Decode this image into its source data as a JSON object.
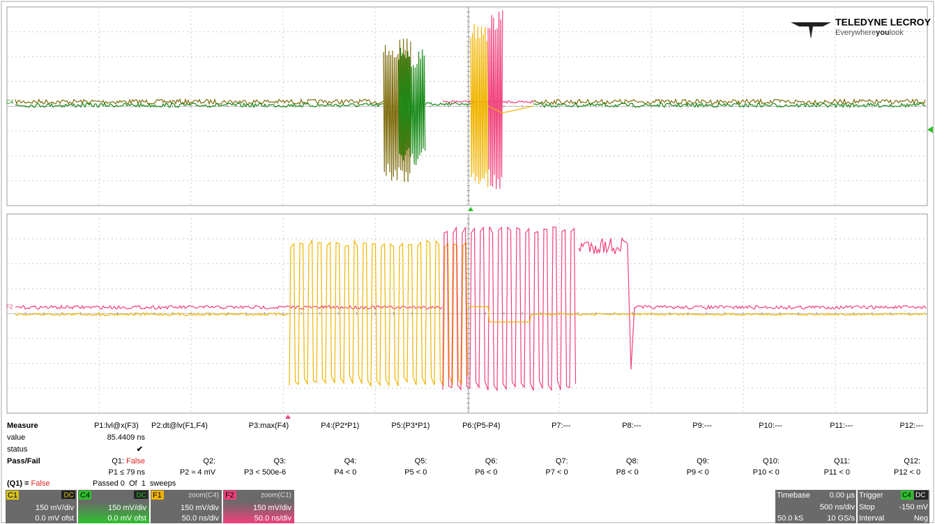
{
  "logo": {
    "brand": "TELEDYNE LECROY",
    "tagline": [
      "Everywhere",
      "you",
      "look"
    ]
  },
  "traces": {
    "top_label": "C4",
    "bottom_label": "F2"
  },
  "measure": {
    "row_labels": [
      "Measure",
      "value",
      "status",
      "Pass/Fail"
    ],
    "params": [
      "P1:lvl@x(F3)",
      "P2:dt@lv(F1,F4)",
      "P3:max(F4)",
      "P4:(P2*P1)",
      "P5:(P3*P1)",
      "P6:(P5-P4)",
      "P7:---",
      "P8:---",
      "P9:---",
      "P10:---",
      "P11:---",
      "P12:---"
    ],
    "value": "85.4409 ns",
    "status": "✔",
    "qualifiers": [
      "Q1:",
      "Q2:",
      "Q3:",
      "Q4:",
      "Q5:",
      "Q6:",
      "Q7:",
      "Q8:",
      "Q9:",
      "Q10:",
      "Q11:",
      "Q12:"
    ],
    "q1_result": "False",
    "conditions": [
      "P1 ≤ 79 ns",
      "P2 ≈ 4 mV",
      "P3 < 500e-6",
      "P4 < 0",
      "P5 < 0",
      "P6 < 0",
      "P7 < 0",
      "P8 < 0",
      "P9 < 0",
      "P10 < 0",
      "P11 < 0",
      "P12 < 0"
    ]
  },
  "summary": {
    "label": "(Q1) =",
    "result": "False",
    "sweeps": "Passed 0  Of  1  sweeps"
  },
  "channels": [
    {
      "name": "C1",
      "tag": "DC",
      "scale": "150 mV/div",
      "detail": "0.0 mV ofst"
    },
    {
      "name": "C4",
      "tag": "DC",
      "scale": "150 mV/div",
      "detail": "0.0 mV ofst"
    },
    {
      "name": "F1",
      "tag": "zoom(C4)",
      "scale": "150 mV/div",
      "detail": "50.0 ns/div"
    },
    {
      "name": "F2",
      "tag": "zoom(C1)",
      "scale": "150 mV/div",
      "detail": "50.0 ns/div"
    }
  ],
  "timebase": {
    "label": "Timebase",
    "delay": "0.00 µs",
    "per_div": "500 ns/div",
    "samples": "50.0 kS",
    "rate": "10 GS/s"
  },
  "trigger": {
    "label": "Trigger",
    "source": "C4",
    "coupling": "DC",
    "mode": "Stop",
    "level": "-150 mV",
    "type": "Interval",
    "slope": "Neg"
  }
}
